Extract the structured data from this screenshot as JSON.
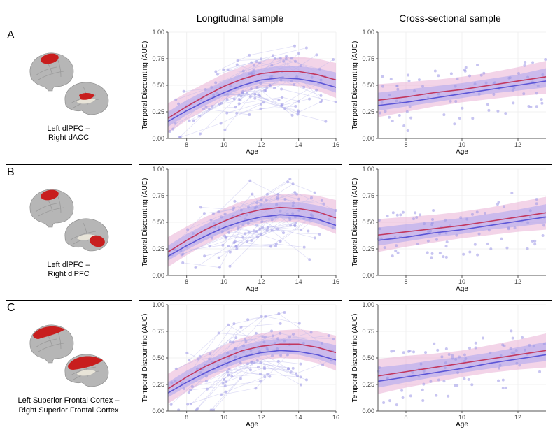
{
  "columns": {
    "blank": "",
    "longitudinal": "Longitudinal sample",
    "cross": "Cross-sectional sample"
  },
  "style": {
    "background": "#ffffff",
    "grid_color": "#f0f0f0",
    "axis_color": "#555555",
    "point_color": "#9a96e6",
    "point_opacity": 0.55,
    "spaghetti_color": "#b6b3ec",
    "spaghetti_opacity": 0.45,
    "band_outer_color": "#e9b1d6",
    "band_outer_opacity": 0.55,
    "band_inner_color": "#a9a4ee",
    "band_inner_opacity": 0.55,
    "line1_color": "#c2375f",
    "line2_color": "#5b55d6",
    "line_width": 1.6,
    "ylabel": "Temporal Discounting (AUC)",
    "xlabel": "Age",
    "ylim": [
      0,
      1
    ],
    "yticks": [
      0.0,
      0.25,
      0.5,
      0.75,
      1.0
    ],
    "label_fontsize": 10,
    "tick_fontsize": 9
  },
  "rows": [
    {
      "id": "A",
      "caption_line1": "Left dlPFC –",
      "caption_line2": "Right dACC",
      "roi_shape": "dlpfc_dacc",
      "longitudinal": {
        "xlim": [
          7,
          16
        ],
        "xticks": [
          8,
          10,
          12,
          14,
          16
        ],
        "curve1": [
          [
            7,
            0.19
          ],
          [
            8,
            0.3
          ],
          [
            9,
            0.4
          ],
          [
            10,
            0.49
          ],
          [
            11,
            0.56
          ],
          [
            12,
            0.61
          ],
          [
            13,
            0.63
          ],
          [
            14,
            0.63
          ],
          [
            15,
            0.6
          ],
          [
            16,
            0.55
          ]
        ],
        "curve2": [
          [
            7,
            0.16
          ],
          [
            8,
            0.26
          ],
          [
            9,
            0.35
          ],
          [
            10,
            0.43
          ],
          [
            11,
            0.5
          ],
          [
            12,
            0.55
          ],
          [
            13,
            0.57
          ],
          [
            14,
            0.56
          ],
          [
            15,
            0.53
          ],
          [
            16,
            0.48
          ]
        ],
        "band_outer": [
          [
            7,
            0.05,
            0.33
          ],
          [
            8,
            0.17,
            0.43
          ],
          [
            9,
            0.27,
            0.52
          ],
          [
            10,
            0.36,
            0.61
          ],
          [
            11,
            0.43,
            0.68
          ],
          [
            12,
            0.48,
            0.73
          ],
          [
            13,
            0.5,
            0.76
          ],
          [
            14,
            0.49,
            0.77
          ],
          [
            15,
            0.45,
            0.75
          ],
          [
            16,
            0.38,
            0.71
          ]
        ],
        "band_inner": [
          [
            7,
            0.11,
            0.25
          ],
          [
            8,
            0.22,
            0.36
          ],
          [
            9,
            0.31,
            0.45
          ],
          [
            10,
            0.4,
            0.54
          ],
          [
            11,
            0.47,
            0.61
          ],
          [
            12,
            0.52,
            0.66
          ],
          [
            13,
            0.54,
            0.68
          ],
          [
            14,
            0.53,
            0.68
          ],
          [
            15,
            0.49,
            0.66
          ],
          [
            16,
            0.43,
            0.62
          ]
        ],
        "n_subjects": 45,
        "points_per_subject": 3
      },
      "cross": {
        "xlim": [
          7,
          13
        ],
        "xticks": [
          8,
          10,
          12
        ],
        "curve1": [
          [
            7,
            0.36
          ],
          [
            8,
            0.39
          ],
          [
            9,
            0.43
          ],
          [
            10,
            0.46
          ],
          [
            11,
            0.5
          ],
          [
            12,
            0.54
          ],
          [
            13,
            0.58
          ]
        ],
        "curve2": [
          [
            7,
            0.31
          ],
          [
            8,
            0.34
          ],
          [
            9,
            0.38
          ],
          [
            10,
            0.42
          ],
          [
            11,
            0.46
          ],
          [
            12,
            0.5
          ],
          [
            13,
            0.54
          ]
        ],
        "band_outer": [
          [
            7,
            0.2,
            0.51
          ],
          [
            8,
            0.25,
            0.53
          ],
          [
            9,
            0.3,
            0.55
          ],
          [
            10,
            0.34,
            0.58
          ],
          [
            11,
            0.37,
            0.62
          ],
          [
            12,
            0.4,
            0.67
          ],
          [
            13,
            0.42,
            0.73
          ]
        ],
        "band_inner": [
          [
            7,
            0.26,
            0.43
          ],
          [
            8,
            0.3,
            0.46
          ],
          [
            9,
            0.34,
            0.49
          ],
          [
            10,
            0.38,
            0.52
          ],
          [
            11,
            0.42,
            0.56
          ],
          [
            12,
            0.45,
            0.6
          ],
          [
            13,
            0.48,
            0.66
          ]
        ],
        "n_points": 80
      }
    },
    {
      "id": "B",
      "caption_line1": "Left dlPFC –",
      "caption_line2": "Right dlPFC",
      "roi_shape": "dlpfc_dlpfc",
      "longitudinal": {
        "xlim": [
          7,
          16
        ],
        "xticks": [
          8,
          10,
          12,
          14,
          16
        ],
        "curve1": [
          [
            7,
            0.22
          ],
          [
            8,
            0.33
          ],
          [
            9,
            0.43
          ],
          [
            10,
            0.51
          ],
          [
            11,
            0.58
          ],
          [
            12,
            0.62
          ],
          [
            13,
            0.64
          ],
          [
            14,
            0.63
          ],
          [
            15,
            0.6
          ],
          [
            16,
            0.54
          ]
        ],
        "curve2": [
          [
            7,
            0.18
          ],
          [
            8,
            0.28
          ],
          [
            9,
            0.37
          ],
          [
            10,
            0.45
          ],
          [
            11,
            0.51
          ],
          [
            12,
            0.55
          ],
          [
            13,
            0.57
          ],
          [
            14,
            0.56
          ],
          [
            15,
            0.53
          ],
          [
            16,
            0.47
          ]
        ],
        "band_outer": [
          [
            7,
            0.08,
            0.36
          ],
          [
            8,
            0.19,
            0.46
          ],
          [
            9,
            0.29,
            0.55
          ],
          [
            10,
            0.38,
            0.63
          ],
          [
            11,
            0.45,
            0.7
          ],
          [
            12,
            0.49,
            0.74
          ],
          [
            13,
            0.51,
            0.77
          ],
          [
            14,
            0.5,
            0.77
          ],
          [
            15,
            0.46,
            0.75
          ],
          [
            16,
            0.39,
            0.71
          ]
        ],
        "band_inner": [
          [
            7,
            0.14,
            0.28
          ],
          [
            8,
            0.24,
            0.39
          ],
          [
            9,
            0.33,
            0.48
          ],
          [
            10,
            0.41,
            0.56
          ],
          [
            11,
            0.48,
            0.63
          ],
          [
            12,
            0.52,
            0.67
          ],
          [
            13,
            0.54,
            0.69
          ],
          [
            14,
            0.53,
            0.69
          ],
          [
            15,
            0.49,
            0.66
          ],
          [
            16,
            0.43,
            0.62
          ]
        ],
        "n_subjects": 45,
        "points_per_subject": 3
      },
      "cross": {
        "xlim": [
          7,
          13
        ],
        "xticks": [
          8,
          10,
          12
        ],
        "curve1": [
          [
            7,
            0.38
          ],
          [
            8,
            0.41
          ],
          [
            9,
            0.44
          ],
          [
            10,
            0.47
          ],
          [
            11,
            0.51
          ],
          [
            12,
            0.55
          ],
          [
            13,
            0.59
          ]
        ],
        "curve2": [
          [
            7,
            0.33
          ],
          [
            8,
            0.36
          ],
          [
            9,
            0.4
          ],
          [
            10,
            0.43
          ],
          [
            11,
            0.47
          ],
          [
            12,
            0.51
          ],
          [
            13,
            0.55
          ]
        ],
        "band_outer": [
          [
            7,
            0.22,
            0.53
          ],
          [
            8,
            0.27,
            0.55
          ],
          [
            9,
            0.31,
            0.57
          ],
          [
            10,
            0.35,
            0.6
          ],
          [
            11,
            0.38,
            0.64
          ],
          [
            12,
            0.41,
            0.69
          ],
          [
            13,
            0.43,
            0.74
          ]
        ],
        "band_inner": [
          [
            7,
            0.28,
            0.45
          ],
          [
            8,
            0.32,
            0.48
          ],
          [
            9,
            0.36,
            0.51
          ],
          [
            10,
            0.39,
            0.54
          ],
          [
            11,
            0.43,
            0.58
          ],
          [
            12,
            0.46,
            0.62
          ],
          [
            13,
            0.49,
            0.67
          ]
        ],
        "n_points": 80
      }
    },
    {
      "id": "C",
      "caption_line1": "Left Superior Frontal Cortex –",
      "caption_line2": "Right Superior Frontal Cortex",
      "roi_shape": "sfc_sfc",
      "longitudinal": {
        "xlim": [
          7,
          16
        ],
        "xticks": [
          8,
          10,
          12,
          14,
          16
        ],
        "curve1": [
          [
            7,
            0.21
          ],
          [
            8,
            0.32
          ],
          [
            9,
            0.42
          ],
          [
            10,
            0.5
          ],
          [
            11,
            0.57
          ],
          [
            12,
            0.61
          ],
          [
            13,
            0.63
          ],
          [
            14,
            0.63
          ],
          [
            15,
            0.6
          ],
          [
            16,
            0.55
          ]
        ],
        "curve2": [
          [
            7,
            0.17
          ],
          [
            8,
            0.27
          ],
          [
            9,
            0.36
          ],
          [
            10,
            0.44
          ],
          [
            11,
            0.51
          ],
          [
            12,
            0.55
          ],
          [
            13,
            0.57
          ],
          [
            14,
            0.56
          ],
          [
            15,
            0.53
          ],
          [
            16,
            0.48
          ]
        ],
        "band_outer": [
          [
            7,
            0.07,
            0.35
          ],
          [
            8,
            0.18,
            0.45
          ],
          [
            9,
            0.28,
            0.54
          ],
          [
            10,
            0.37,
            0.62
          ],
          [
            11,
            0.44,
            0.69
          ],
          [
            12,
            0.48,
            0.73
          ],
          [
            13,
            0.5,
            0.76
          ],
          [
            14,
            0.49,
            0.77
          ],
          [
            15,
            0.45,
            0.75
          ],
          [
            16,
            0.38,
            0.71
          ]
        ],
        "band_inner": [
          [
            7,
            0.13,
            0.27
          ],
          [
            8,
            0.23,
            0.38
          ],
          [
            9,
            0.32,
            0.47
          ],
          [
            10,
            0.4,
            0.55
          ],
          [
            11,
            0.47,
            0.62
          ],
          [
            12,
            0.52,
            0.66
          ],
          [
            13,
            0.54,
            0.68
          ],
          [
            14,
            0.53,
            0.68
          ],
          [
            15,
            0.49,
            0.66
          ],
          [
            16,
            0.43,
            0.62
          ]
        ],
        "n_subjects": 45,
        "points_per_subject": 3
      },
      "cross": {
        "xlim": [
          7,
          13
        ],
        "xticks": [
          8,
          10,
          12
        ],
        "curve1": [
          [
            7,
            0.33
          ],
          [
            8,
            0.37
          ],
          [
            9,
            0.41
          ],
          [
            10,
            0.45
          ],
          [
            11,
            0.49
          ],
          [
            12,
            0.53
          ],
          [
            13,
            0.57
          ]
        ],
        "curve2": [
          [
            7,
            0.28
          ],
          [
            8,
            0.32
          ],
          [
            9,
            0.36
          ],
          [
            10,
            0.4
          ],
          [
            11,
            0.45
          ],
          [
            12,
            0.49
          ],
          [
            13,
            0.53
          ]
        ],
        "band_outer": [
          [
            7,
            0.16,
            0.49
          ],
          [
            8,
            0.22,
            0.52
          ],
          [
            9,
            0.27,
            0.54
          ],
          [
            10,
            0.32,
            0.57
          ],
          [
            11,
            0.36,
            0.62
          ],
          [
            12,
            0.39,
            0.67
          ],
          [
            13,
            0.41,
            0.73
          ]
        ],
        "band_inner": [
          [
            7,
            0.22,
            0.41
          ],
          [
            8,
            0.27,
            0.44
          ],
          [
            9,
            0.32,
            0.48
          ],
          [
            10,
            0.36,
            0.51
          ],
          [
            11,
            0.4,
            0.55
          ],
          [
            12,
            0.44,
            0.6
          ],
          [
            13,
            0.47,
            0.65
          ]
        ],
        "n_points": 80
      }
    }
  ]
}
